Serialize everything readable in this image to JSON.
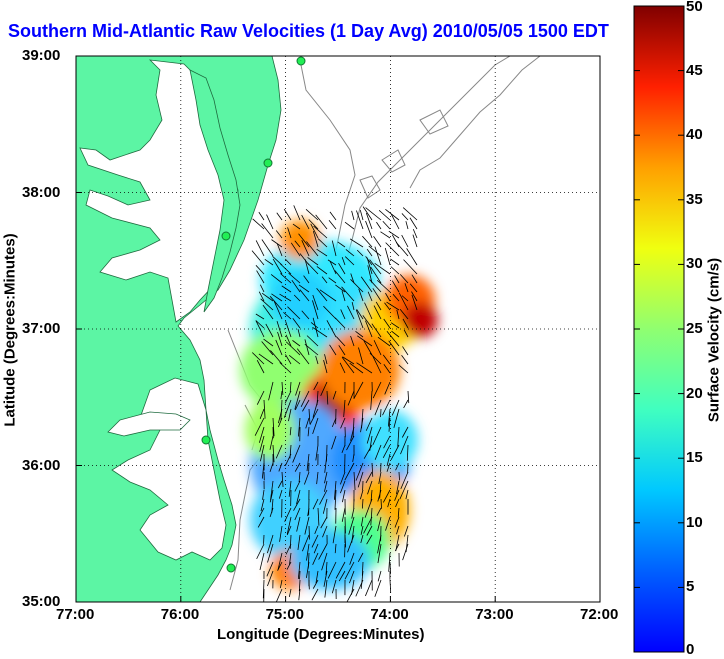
{
  "map": {
    "title": "Southern Mid-Atlantic Raw Velocities (1 Day Avg) 2010/05/05 1500 EDT",
    "xlabel": "Longitude (Degrees:Minutes)",
    "ylabel": "Latitude (Degrees:Minutes)",
    "x_ticks": [
      "77:00",
      "76:00",
      "75:00",
      "74:00",
      "73:00",
      "72:00"
    ],
    "y_ticks": [
      "39:00",
      "38:00",
      "37:00",
      "36:00",
      "35:00"
    ],
    "lon_range": [
      -77,
      -72
    ],
    "lat_range": [
      35,
      39
    ],
    "grid": true,
    "land_color": "#5cf5a4",
    "sea_color": "#ffffff"
  },
  "colorbar": {
    "label": "Surface Velocity (cm/s)",
    "ticks": [
      "0",
      "5",
      "10",
      "15",
      "20",
      "25",
      "30",
      "35",
      "40",
      "45",
      "50"
    ],
    "range": [
      0,
      50
    ],
    "colormap": "jet"
  }
}
